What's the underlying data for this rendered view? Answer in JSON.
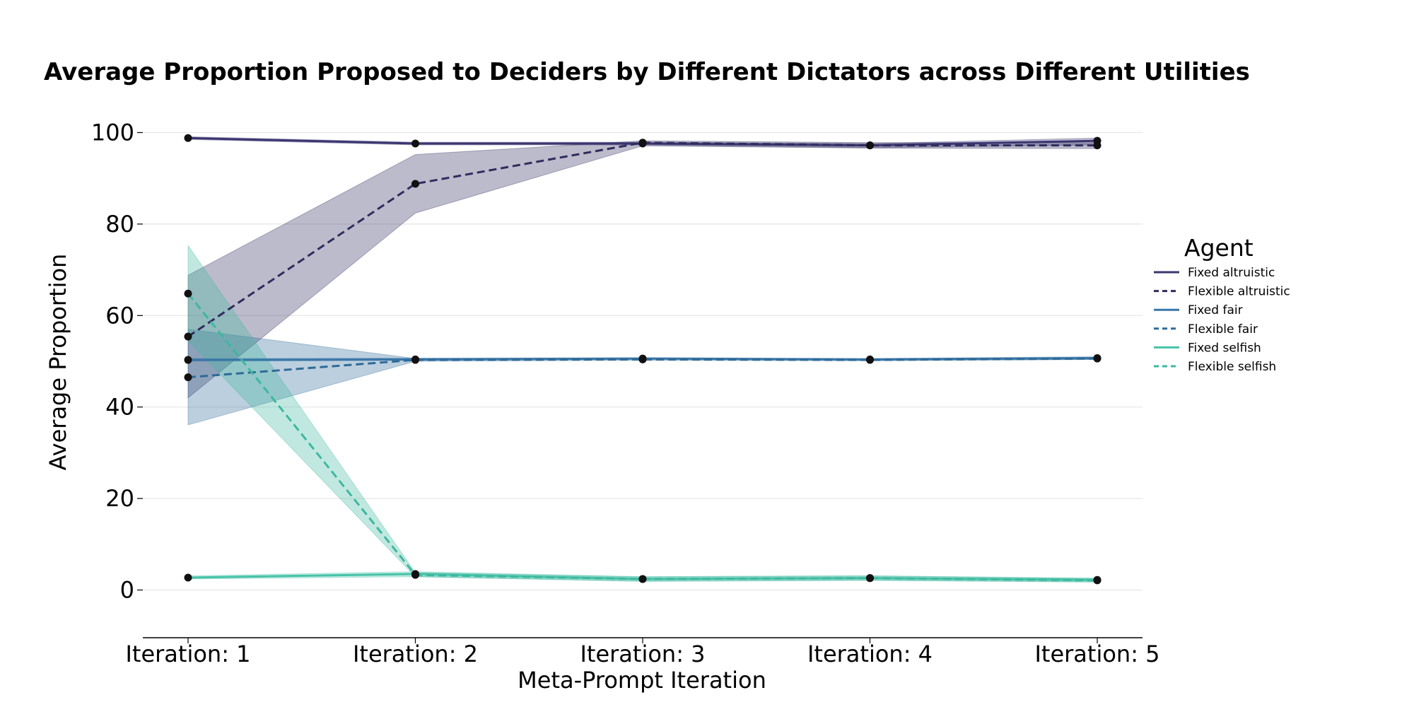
{
  "chart_data": {
    "type": "line",
    "title": "Average Proportion Proposed to Deciders by Different Dictators across Different Utilities",
    "xlabel": "Meta-Prompt Iteration",
    "ylabel": "Average Proportion",
    "categories": [
      "Iteration: 1",
      "Iteration: 2",
      "Iteration: 3",
      "Iteration: 4",
      "Iteration: 5"
    ],
    "ylim": [
      -10,
      104
    ],
    "yticks": [
      0,
      20,
      40,
      60,
      80,
      100
    ],
    "grid": "horizontal",
    "legend_title": "Agent",
    "legend_position": "right",
    "series": [
      {
        "name": "Fixed altruistic",
        "color": "#3b3670",
        "dash": "solid",
        "values": [
          98.8,
          97.6,
          97.6,
          97.2,
          98.2
        ],
        "lower": [
          98.5,
          97.3,
          97.3,
          96.7,
          97.3
        ],
        "upper": [
          99.1,
          97.9,
          97.9,
          97.6,
          98.8
        ]
      },
      {
        "name": "Flexible altruistic",
        "color": "#2f2c5e",
        "dash": "dashed",
        "values": [
          55.4,
          88.8,
          97.8,
          97.2,
          97.2
        ],
        "lower": [
          42.0,
          82.4,
          97.1,
          96.6,
          96.5
        ],
        "upper": [
          68.8,
          95.2,
          98.2,
          97.8,
          97.8
        ]
      },
      {
        "name": "Fixed fair",
        "color": "#3a76a8",
        "dash": "solid",
        "values": [
          50.3,
          50.4,
          50.6,
          50.4,
          50.7
        ],
        "lower": [
          50.0,
          50.2,
          50.4,
          50.2,
          50.4
        ],
        "upper": [
          50.6,
          50.7,
          50.8,
          50.6,
          51.0
        ]
      },
      {
        "name": "Flexible fair",
        "color": "#2f6b98",
        "dash": "dashed",
        "values": [
          46.5,
          50.3,
          50.4,
          50.3,
          50.6
        ],
        "lower": [
          36.1,
          50.0,
          50.2,
          50.1,
          50.4
        ],
        "upper": [
          57.0,
          50.6,
          50.7,
          50.5,
          50.8
        ]
      },
      {
        "name": "Fixed selfish",
        "color": "#46c2a8",
        "dash": "solid",
        "values": [
          2.7,
          3.5,
          2.4,
          2.6,
          2.2
        ],
        "lower": [
          2.4,
          2.9,
          1.9,
          2.1,
          1.8
        ],
        "upper": [
          3.1,
          4.0,
          2.9,
          3.1,
          2.6
        ]
      },
      {
        "name": "Flexible selfish",
        "color": "#3db89e",
        "dash": "dashed",
        "values": [
          64.8,
          3.3,
          2.4,
          2.6,
          2.1
        ],
        "lower": [
          54.5,
          2.9,
          1.9,
          2.1,
          1.7
        ],
        "upper": [
          75.3,
          3.8,
          2.9,
          3.1,
          2.5
        ]
      }
    ]
  }
}
